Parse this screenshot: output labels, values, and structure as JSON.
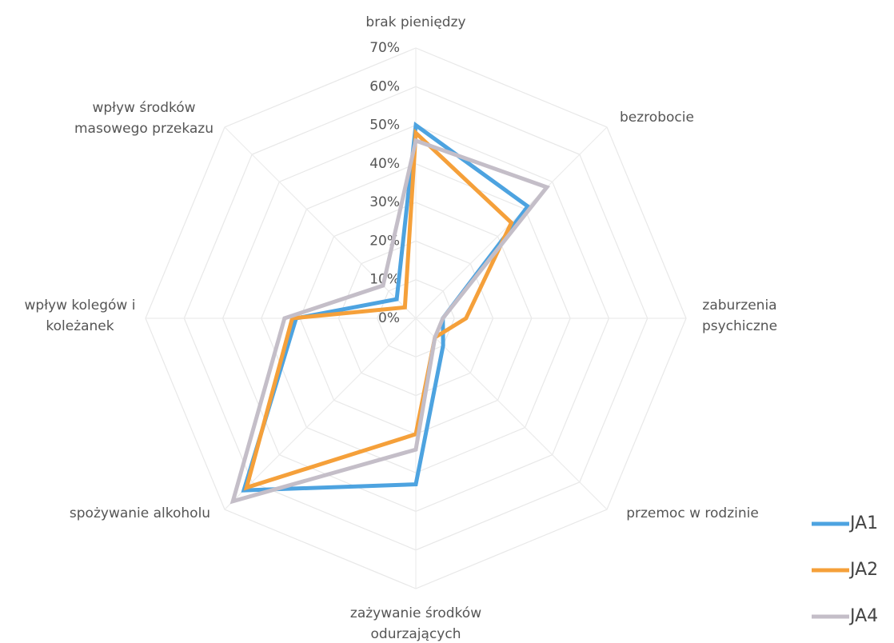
{
  "chart_data": {
    "type": "radar",
    "categories": [
      "brak pieniędzy",
      "bezrobocie",
      "zaburzenia\npsychiczne",
      "przemoc w rodzinie",
      "zażywanie środków\nodurzających",
      "spożywanie alkoholu",
      "wpływ kolegów i\nkoleżanek",
      "wpływ środków\nmasowego przekazu"
    ],
    "rlim": [
      0,
      70
    ],
    "rticks": [
      {
        "value": 0,
        "label": "0%"
      },
      {
        "value": 10,
        "label": "10%"
      },
      {
        "value": 20,
        "label": "20%"
      },
      {
        "value": 30,
        "label": "30%"
      },
      {
        "value": 40,
        "label": "40%"
      },
      {
        "value": 50,
        "label": "50%"
      },
      {
        "value": 60,
        "label": "60%"
      },
      {
        "value": 70,
        "label": "70%"
      }
    ],
    "grid": true,
    "legend": "lower right",
    "series": [
      {
        "name": "JA1",
        "color": "#4da3e0",
        "values": [
          50,
          41,
          7,
          10,
          43,
          63,
          31,
          7
        ]
      },
      {
        "name": "JA2",
        "color": "#f5a03a",
        "values": [
          48,
          35,
          13,
          7,
          30,
          62,
          32,
          4
        ]
      },
      {
        "name": "JA4",
        "color": "#c4bec8",
        "values": [
          46,
          48,
          7,
          7,
          34,
          67,
          34,
          12
        ]
      }
    ]
  }
}
